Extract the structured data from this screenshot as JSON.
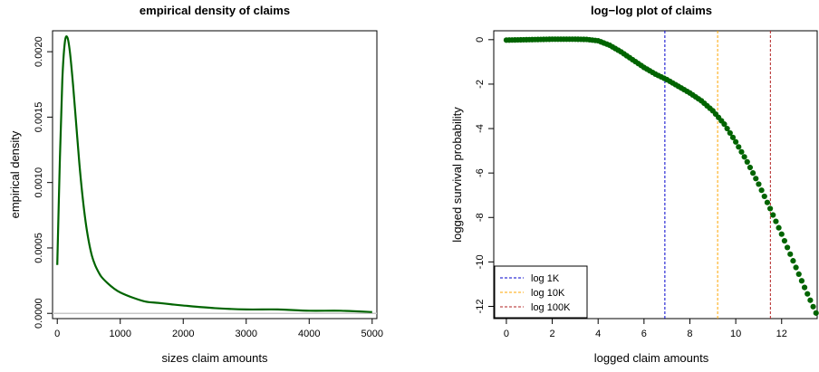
{
  "chart_data": [
    {
      "type": "line",
      "title": "empirical density of claims",
      "xlabel": "sizes claim amounts",
      "ylabel": "empirical density",
      "xlim": [
        -75,
        5075
      ],
      "ylim": [
        -4e-05,
        0.00216
      ],
      "xticks": [
        0,
        1000,
        2000,
        3000,
        4000,
        5000
      ],
      "yticks": [
        0.0,
        0.0005,
        0.001,
        0.0015,
        0.002
      ],
      "ytick_labels": [
        "0.0000",
        "0.0005",
        "0.0010",
        "0.0015",
        "0.0020"
      ],
      "grid": false,
      "reference_line": {
        "y": 0,
        "color": "#c8c8c8"
      },
      "series": [
        {
          "color": "#006400",
          "x": [
            0,
            40,
            80,
            120,
            160,
            200,
            250,
            300,
            350,
            400,
            450,
            500,
            550,
            600,
            650,
            700,
            800,
            900,
            1000,
            1200,
            1400,
            1600,
            1800,
            2000,
            2500,
            3000,
            3500,
            4000,
            4500,
            5000
          ],
          "y": [
            0.00037,
            0.00115,
            0.00178,
            0.00207,
            0.00211,
            0.002,
            0.00175,
            0.00145,
            0.00115,
            0.0009,
            0.0007,
            0.00055,
            0.00044,
            0.00037,
            0.00032,
            0.00028,
            0.00023,
            0.00019,
            0.00016,
            0.00012,
            9e-05,
            8e-05,
            7e-05,
            6e-05,
            4e-05,
            3e-05,
            3e-05,
            2e-05,
            2e-05,
            1e-05
          ]
        }
      ]
    },
    {
      "type": "scatter",
      "title": "log−log plot of claims",
      "xlabel": "logged claim amounts",
      "ylabel": "logged survival probability",
      "xlim": [
        -0.55,
        13.55
      ],
      "ylim": [
        -12.55,
        0.4
      ],
      "xticks": [
        0,
        2,
        4,
        6,
        8,
        10,
        12
      ],
      "yticks": [
        0,
        -2,
        -4,
        -6,
        -8,
        -10,
        -12
      ],
      "grid": false,
      "point_color": "#006400",
      "series": [
        {
          "x": [
            0,
            0.5,
            1,
            1.5,
            2,
            2.5,
            3,
            3.5,
            4,
            4.5,
            5,
            5.5,
            6,
            6.5,
            7,
            7.5,
            8,
            8.5,
            9,
            9.5,
            10,
            10.5,
            11,
            11.5,
            12,
            12.5,
            13,
            13.5
          ],
          "y": [
            -0.02,
            -0.01,
            0,
            0.01,
            0.02,
            0.02,
            0.02,
            0.01,
            -0.05,
            -0.25,
            -0.55,
            -0.9,
            -1.25,
            -1.55,
            -1.8,
            -2.1,
            -2.4,
            -2.75,
            -3.2,
            -3.8,
            -4.6,
            -5.5,
            -6.5,
            -7.6,
            -8.75,
            -9.95,
            -11.15,
            -12.3
          ]
        }
      ],
      "vertical_lines": [
        {
          "label": "log 1K",
          "x": 6.91,
          "color": "#0000cd"
        },
        {
          "label": "log 10K",
          "x": 9.21,
          "color": "#ffa500"
        },
        {
          "label": "log 100K",
          "x": 11.51,
          "color": "#b22222"
        }
      ],
      "legend_position": "bottom-left"
    }
  ]
}
